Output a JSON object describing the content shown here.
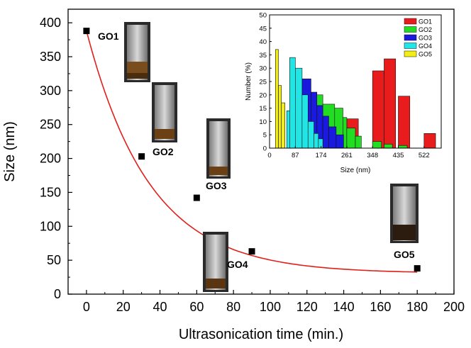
{
  "chart_data": [
    {
      "type": "scatter",
      "xlabel": "Ultrasonication time (min.)",
      "ylabel": "Size (nm)",
      "xlim": [
        -10,
        200
      ],
      "ylim": [
        0,
        420
      ],
      "xticks": [
        0,
        20,
        40,
        60,
        80,
        100,
        120,
        140,
        160,
        180,
        200
      ],
      "yticks": [
        0,
        50,
        100,
        150,
        200,
        250,
        300,
        350,
        400
      ],
      "grid": false,
      "marker_color": "#000000",
      "fit_color": "#e0201b",
      "points": [
        {
          "x": 0,
          "y": 388,
          "label": "GO1"
        },
        {
          "x": 30,
          "y": 203,
          "label": "GO2"
        },
        {
          "x": 60,
          "y": 142,
          "label": "GO3"
        },
        {
          "x": 90,
          "y": 63,
          "label": "GO4"
        },
        {
          "x": 180,
          "y": 38,
          "label": "GO5"
        }
      ],
      "fit_curve": {
        "type": "exponential_decay",
        "y0": 30.6,
        "A": 357.4,
        "t": 34.5
      }
    },
    {
      "type": "bar",
      "xlabel": "Size (nm)",
      "ylabel": "Number (%)",
      "xticks": [
        0,
        87,
        174,
        261,
        348,
        435,
        522
      ],
      "yticks": [
        0,
        5,
        10,
        15,
        20,
        25,
        30,
        35,
        40,
        45,
        50
      ],
      "xlim": [
        0,
        580
      ],
      "ylim": [
        0,
        50
      ],
      "legend": "top-right",
      "series": [
        {
          "name": "GO1",
          "color": "#e81c1c",
          "bars": [
            [
              261,
              300,
              11
            ],
            [
              348,
              387,
              29
            ],
            [
              387,
              426,
              33.5
            ],
            [
              435,
              474,
              19.5
            ],
            [
              522,
              561,
              5.5
            ]
          ]
        },
        {
          "name": "GO2",
          "color": "#22dd22",
          "bars": [
            [
              100,
              140,
              20.5
            ],
            [
              140,
              180,
              20
            ],
            [
              180,
              220,
              16.5
            ],
            [
              220,
              248,
              15
            ],
            [
              248,
              261,
              11.5
            ],
            [
              261,
              290,
              7.5
            ],
            [
              290,
              310,
              4.5
            ],
            [
              348,
              378,
              2.5
            ],
            [
              387,
              415,
              1.5
            ],
            [
              435,
              465,
              1
            ]
          ]
        },
        {
          "name": "GO3",
          "color": "#1a1adf",
          "bars": [
            [
              87,
              110,
              19.5
            ],
            [
              110,
              140,
              26
            ],
            [
              140,
              160,
              21
            ],
            [
              160,
              180,
              16
            ],
            [
              180,
              200,
              12
            ],
            [
              200,
              225,
              8
            ],
            [
              225,
              250,
              5
            ]
          ]
        },
        {
          "name": "GO4",
          "color": "#22e6e6",
          "bars": [
            [
              58,
              68,
              14
            ],
            [
              68,
              87,
              34
            ],
            [
              87,
              110,
              30
            ],
            [
              110,
              130,
              20
            ],
            [
              130,
              150,
              10
            ],
            [
              150,
              165,
              5.5
            ],
            [
              165,
              180,
              3.5
            ]
          ]
        },
        {
          "name": "GO5",
          "color": "#f2ee16",
          "bars": [
            [
              20,
              30,
              37
            ],
            [
              30,
              40,
              23.5
            ],
            [
              40,
              52,
              17
            ]
          ]
        }
      ]
    }
  ]
}
